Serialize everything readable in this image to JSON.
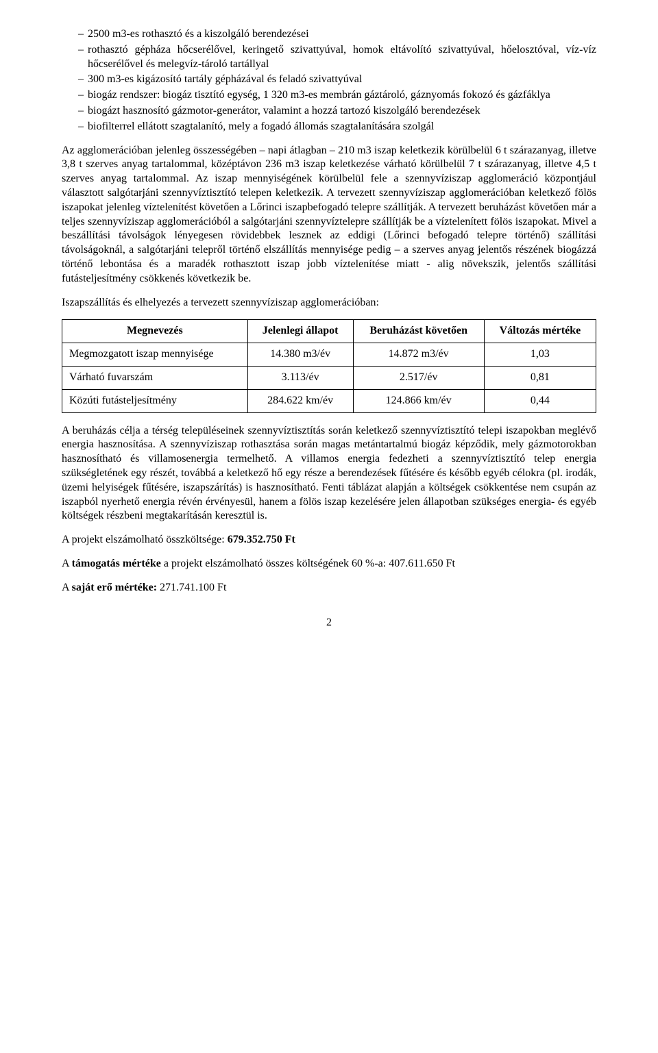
{
  "bullets": [
    "2500 m3-es rothasztó és a kiszolgáló berendezései",
    "rothasztó gépháza hőcserélővel, keringető szivattyúval, homok eltávolító szivattyúval, hőelosztóval, víz-víz hőcserélővel és melegvíz-tároló tartállyal",
    "300 m3-es kigázosító tartály gépházával és feladó szivattyúval",
    "biogáz rendszer: biogáz tisztító egység, 1 320 m3-es membrán gáztároló, gáznyomás fokozó és gázfáklya",
    "biogázt hasznosító gázmotor-generátor, valamint a hozzá tartozó kiszolgáló berendezések",
    "biofilterrel ellátott szagtalanító, mely a fogadó állomás szagtalanítására szolgál"
  ],
  "para1": "Az agglomerációban jelenleg összességében – napi átlagban – 210 m3 iszap keletkezik körülbelül 6 t szárazanyag, illetve 3,8 t szerves anyag tartalommal, középtávon 236 m3 iszap keletkezése várható körülbelül 7 t szárazanyag, illetve 4,5 t szerves anyag tartalommal. Az iszap mennyiségének körülbelül fele a szennyvíziszap agglomeráció központjául választott salgótarjáni szennyvíztisztító telepen keletkezik. A tervezett szennyvíziszap agglomerációban keletkező fölös iszapokat jelenleg víztelenítést követően a Lőrinci iszapbefogadó telepre szállítják. A tervezett beruházást követően már a teljes szennyvíziszap agglomerációból a salgótarjáni szennyvíztelepre szállítják be a víztelenített fölös iszapokat. Mivel a beszállítási távolságok lényegesen rövidebbek lesznek az eddigi (Lőrinci befogadó telepre történő) szállítási távolságoknál, a salgótarjáni telepről történő elszállítás mennyisége pedig – a szerves anyag jelentős részének biogázzá történő lebontása és a maradék rothasztott iszap jobb víztelenítése miatt - alig növekszik, jelentős szállítási futásteljesítmény csökkenés következik be.",
  "para2": "Iszapszállítás és elhelyezés a tervezett szennyvíziszap agglomerációban:",
  "table": {
    "headers": [
      "Megnevezés",
      "Jelenlegi állapot",
      "Beruházást követően",
      "Változás mértéke"
    ],
    "rows": [
      [
        "Megmozgatott iszap mennyisége",
        "14.380 m3/év",
        "14.872 m3/év",
        "1,03"
      ],
      [
        "Várható fuvarszám",
        "3.113/év",
        "2.517/év",
        "0,81"
      ],
      [
        "Közúti futásteljesítmény",
        "284.622 km/év",
        "124.866 km/év",
        "0,44"
      ]
    ]
  },
  "para3": "A beruházás célja a térség településeinek szennyvíztisztítás során keletkező szennyvíztisztító telepi iszapokban meglévő energia hasznosítása. A szennyvíziszap rothasztása során magas metántartalmú biogáz képződik, mely gázmotorokban hasznosítható és villamosenergia termelhető. A villamos energia fedezheti a szennyvíztisztító telep energia szükségletének egy részét, továbbá a keletkező hő egy része a berendezések fűtésére és később egyéb célokra (pl. irodák, üzemi helyiségek fűtésére, iszapszárítás) is hasznosítható. Fenti táblázat alapján a költségek csökkentése nem csupán az iszapból nyerhető energia révén érvényesül, hanem a fölös iszap kezelésére jelen állapotban szükséges energia- és egyéb költségek részbeni megtakarításán keresztül is.",
  "cost_prefix": "A projekt elszámolható összköltsége: ",
  "cost_value": "679.352.750 Ft",
  "support_prefix1": "A ",
  "support_bold": "támogatás mértéke",
  "support_prefix2": " a projekt elszámolható összes költségének 60 %-a: 407.611.650 Ft",
  "own_prefix": "A ",
  "own_bold": "saját erő mértéke:",
  "own_value": " 271.741.100 Ft",
  "page": "2"
}
